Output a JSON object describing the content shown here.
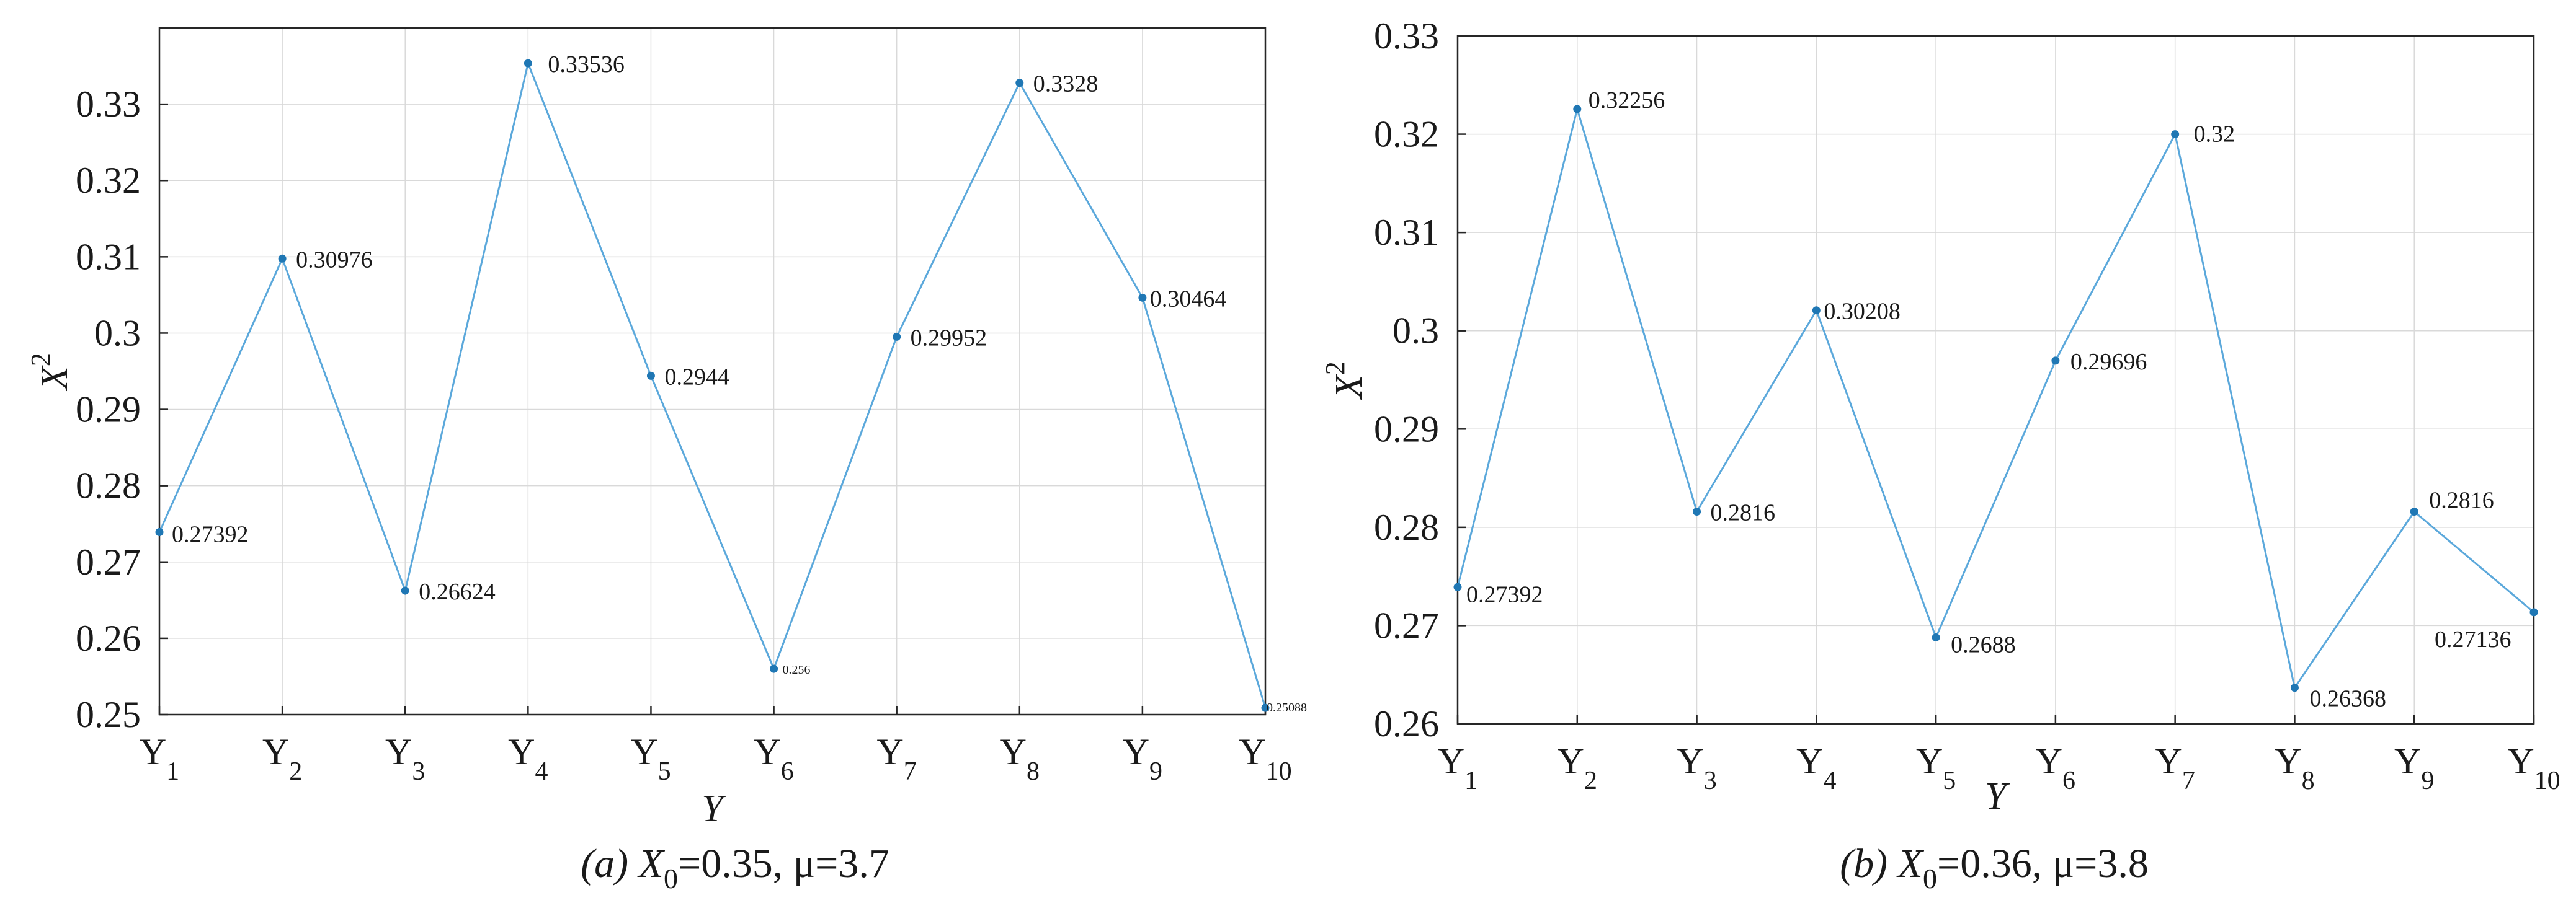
{
  "figure": {
    "panels": [
      {
        "caption": {
          "prefix": "(a) ",
          "var": "X",
          "sub": "0",
          "rest": "=0.35, μ=3.7"
        }
      },
      {
        "caption": {
          "prefix": "(b) ",
          "var": "X",
          "sub": "0",
          "rest": "=0.36, μ=3.8"
        }
      }
    ]
  },
  "chart_data": [
    {
      "type": "line",
      "xlabel": "Y",
      "ylabel": {
        "base": "X",
        "sup": "2"
      },
      "categories": [
        {
          "base": "Y",
          "sub": "1"
        },
        {
          "base": "Y",
          "sub": "2"
        },
        {
          "base": "Y",
          "sub": "3"
        },
        {
          "base": "Y",
          "sub": "4"
        },
        {
          "base": "Y",
          "sub": "5"
        },
        {
          "base": "Y",
          "sub": "6"
        },
        {
          "base": "Y",
          "sub": "7"
        },
        {
          "base": "Y",
          "sub": "8"
        },
        {
          "base": "Y",
          "sub": "9"
        },
        {
          "base": "Y",
          "sub": "10"
        }
      ],
      "values": [
        0.27392,
        0.30976,
        0.26624,
        0.33536,
        0.2944,
        0.256,
        0.29952,
        0.3328,
        0.30464,
        0.25088
      ],
      "data_labels": [
        "0.27392",
        "0.30976",
        "0.26624",
        "0.33536",
        "0.2944",
        "0.256",
        "0.29952",
        "0.3328",
        "0.30464",
        "0.25088"
      ],
      "ylim": [
        0.25,
        0.34
      ],
      "yticks": [
        0.25,
        0.26,
        0.27,
        0.28,
        0.29,
        0.3,
        0.31,
        0.32,
        0.33
      ],
      "ytick_labels": [
        "0.25",
        "0.26",
        "0.27",
        "0.28",
        "0.29",
        "0.3",
        "0.31",
        "0.32",
        "0.33"
      ],
      "grid": true,
      "line_color": "#5ba8db",
      "marker_color": "#1f77b4"
    },
    {
      "type": "line",
      "xlabel": "Y",
      "ylabel": {
        "base": "X",
        "sup": "2"
      },
      "categories": [
        {
          "base": "Y",
          "sub": "1"
        },
        {
          "base": "Y",
          "sub": "2"
        },
        {
          "base": "Y",
          "sub": "3"
        },
        {
          "base": "Y",
          "sub": "4"
        },
        {
          "base": "Y",
          "sub": "5"
        },
        {
          "base": "Y",
          "sub": "6"
        },
        {
          "base": "Y",
          "sub": "7"
        },
        {
          "base": "Y",
          "sub": "8"
        },
        {
          "base": "Y",
          "sub": "9"
        },
        {
          "base": "Y",
          "sub": "10"
        }
      ],
      "values": [
        0.27392,
        0.32256,
        0.2816,
        0.30208,
        0.2688,
        0.29696,
        0.32,
        0.26368,
        0.2816,
        0.27136
      ],
      "data_labels": [
        "0.27392",
        "0.32256",
        "0.2816",
        "0.30208",
        "0.2688",
        "0.29696",
        "0.32",
        "0.26368",
        "0.2816",
        "0.27136"
      ],
      "ylim": [
        0.26,
        0.33
      ],
      "yticks": [
        0.26,
        0.27,
        0.28,
        0.29,
        0.3,
        0.31,
        0.32,
        0.33
      ],
      "ytick_labels": [
        "0.26",
        "0.27",
        "0.28",
        "0.29",
        "0.3",
        "0.31",
        "0.32",
        "0.33"
      ],
      "grid": true,
      "line_color": "#5ba8db",
      "marker_color": "#1f77b4"
    }
  ]
}
